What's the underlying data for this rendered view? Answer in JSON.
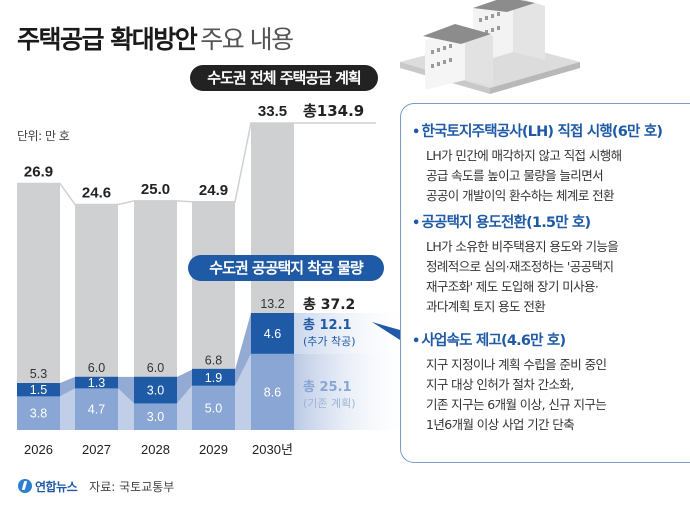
{
  "title": {
    "bold": "주택공급 확대방안",
    "light": "주요 내용"
  },
  "source": {
    "brand": "연합뉴스",
    "text": "자료: 국토교통부"
  },
  "chart_data": [
    {
      "type": "bar",
      "title": "수도권 전체 주택공급 계획",
      "unit_label": "단위: 만 호",
      "categories": [
        "2026",
        "2027",
        "2028",
        "2029",
        "2030년"
      ],
      "values": [
        26.9,
        24.6,
        25.0,
        24.9,
        33.5
      ],
      "value_labels": [
        "26.9",
        "24.6",
        "25.0",
        "24.9",
        "33.5"
      ],
      "total_label": "총134.9",
      "ylim": [
        0,
        34
      ]
    },
    {
      "type": "bar",
      "stacked": true,
      "title": "수도권 공공택지 착공 물량",
      "categories": [
        "2026",
        "2027",
        "2028",
        "2029",
        "2030년"
      ],
      "series": [
        {
          "name": "기존 계획",
          "values": [
            3.8,
            4.7,
            3.0,
            5.0,
            8.6
          ],
          "labels": [
            "3.8",
            "4.7",
            "3.0",
            "5.0",
            "8.6"
          ],
          "color": "#8aa6d4"
        },
        {
          "name": "추가 착공",
          "values": [
            1.5,
            1.3,
            3.0,
            1.9,
            4.6
          ],
          "labels": [
            "1.5",
            "1.3",
            "3.0",
            "1.9",
            "4.6"
          ],
          "color": "#1f5aa6"
        }
      ],
      "totals": [
        5.3,
        6.0,
        6.0,
        6.8,
        13.2
      ],
      "total_labels": [
        "5.3",
        "6.0",
        "6.0",
        "6.8",
        "13.2"
      ],
      "summary": {
        "total": "총 37.2",
        "added": {
          "value": "총 12.1",
          "label": "(추가 착공)"
        },
        "existing": {
          "value": "총 25.1",
          "label": "(기존 계획)"
        }
      }
    }
  ],
  "panel": {
    "sections": [
      {
        "head": "한국토지주택공사(LH) 직접 시행(6만 호)",
        "lines": [
          "LH가 민간에 매각하지 않고 직접 시행해",
          "공급 속도를 높이고 물량을 늘리면서",
          "공공이 개발이익 환수하는 체계로 전환"
        ]
      },
      {
        "head": "공공택지 용도전환(1.5만 호)",
        "lines": [
          "LH가 소유한 비주택용지 용도와 기능을",
          "정례적으로 심의·재조정하는 '공공택지",
          "재구조화' 제도 도입해 장기 미사용·",
          "과다계획 토지 용도 전환"
        ]
      },
      {
        "head": "사업속도 제고(4.6만 호)",
        "lines": [
          "지구 지정이나 계획 수립을 준비 중인",
          "지구 대상 인허가 절차 간소화,",
          "기존 지구는 6개월 이상, 신규 지구는",
          "1년6개월 이상 사업 기간 단축"
        ]
      }
    ],
    "bullet": "•"
  },
  "colors": {
    "gray_bar": "#cfd0d2",
    "dark_blue": "#1f5aa6",
    "light_blue": "#8aa6d4",
    "pill_dark": "#222222"
  }
}
